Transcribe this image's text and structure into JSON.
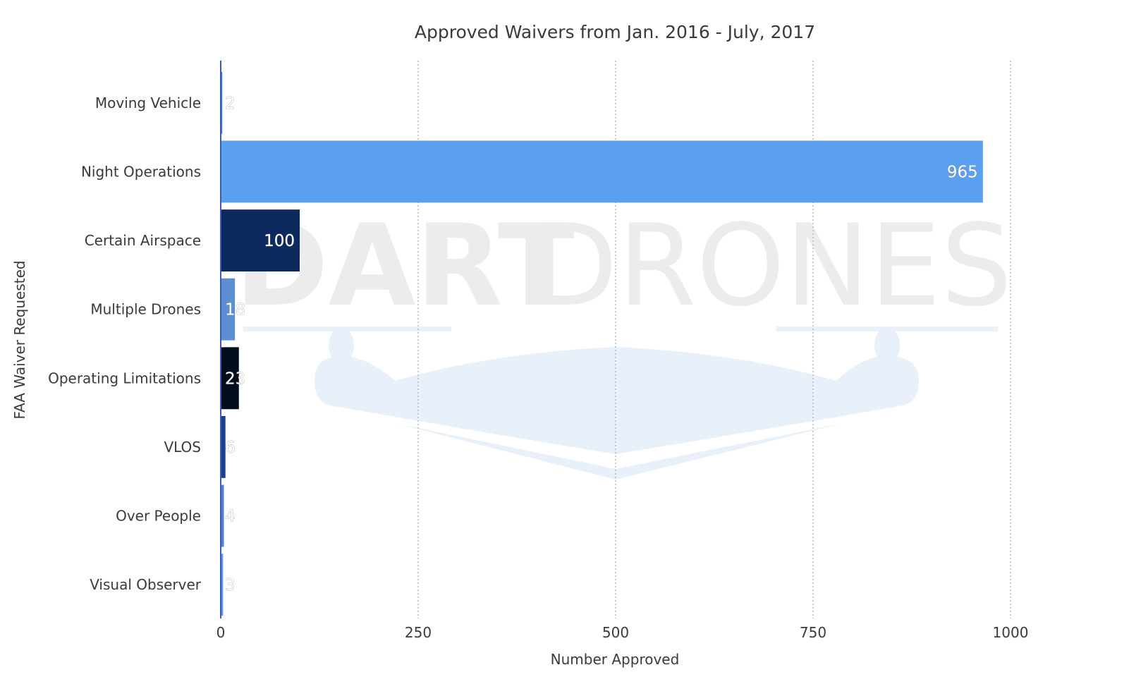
{
  "watermark": {
    "bold_text": "DART",
    "light_text": "DRONES"
  },
  "colors": {
    "grid": "#9a9a9a",
    "axis": "#3b5bb5",
    "text": "#3a3a3a",
    "watermark_drone": "#e8f1fa"
  },
  "chart_data": {
    "type": "bar",
    "orientation": "horizontal",
    "title": "Approved Waivers from Jan. 2016 - July, 2017",
    "xlabel": "Number Approved",
    "ylabel": "FAA Waiver  Requested",
    "xlim": [
      0,
      1000
    ],
    "xticks": [
      0,
      250,
      500,
      750,
      1000
    ],
    "grid": "vertical dashed",
    "categories": [
      "Moving Vehicle",
      "Night Operations",
      "Certain Airspace",
      "Multiple Drones",
      "Operating Limitations",
      "VLOS",
      "Over People",
      "Visual Observer"
    ],
    "values": [
      2,
      965,
      100,
      18,
      23,
      6,
      4,
      3
    ],
    "bar_colors": [
      "#4a7fd6",
      "#5aa0ee",
      "#0c2a5e",
      "#5b8fd1",
      "#020d1d",
      "#1e3e8c",
      "#4f7fd6",
      "#5d99ea"
    ]
  }
}
